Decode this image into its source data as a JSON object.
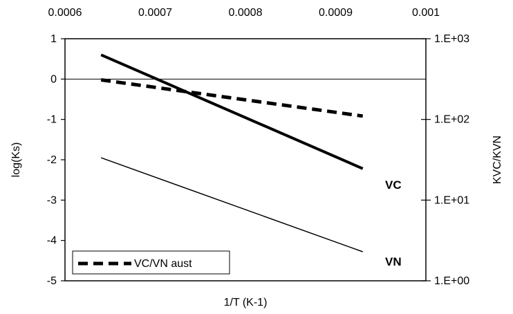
{
  "chart_data": {
    "type": "line",
    "title": "",
    "x_axis": {
      "label": "1/T (K-1)",
      "range": [
        0.0006,
        0.001
      ],
      "tick_values": [
        0.0006,
        0.0007,
        0.0008,
        0.0009,
        0.001
      ],
      "tick_labels": [
        "0.0006",
        "0.0007",
        "0.0008",
        "0.0009",
        "0.001"
      ],
      "tick_label_position": "top"
    },
    "y_axis_left": {
      "label": "log(Ks)",
      "range": [
        -5,
        1
      ],
      "tick_values": [
        1,
        0,
        -1,
        -2,
        -3,
        -4,
        -5
      ],
      "tick_labels": [
        "1",
        "0",
        "-1",
        "-2",
        "-3",
        "-4",
        "-5"
      ]
    },
    "y_axis_right": {
      "label": "KVC/KVN",
      "scale": "log",
      "range": [
        1,
        1000
      ],
      "tick_values": [
        1000,
        100,
        10,
        1
      ],
      "tick_labels": [
        "1.E+03",
        "1.E+02",
        "1.E+01",
        "1.E+00"
      ]
    },
    "grid": false,
    "series": [
      {
        "name": "VC",
        "axis": "left",
        "style": "thick-solid",
        "color": "#000000",
        "x": [
          0.00064,
          0.00093
        ],
        "y": [
          0.6,
          -2.22
        ]
      },
      {
        "name": "VN",
        "axis": "left",
        "style": "thin-solid",
        "color": "#000000",
        "x": [
          0.00064,
          0.00093
        ],
        "y": [
          -1.95,
          -4.28
        ]
      },
      {
        "name": "VC/VN aust",
        "axis": "right",
        "style": "dashed",
        "color": "#000000",
        "x": [
          0.00064,
          0.00093
        ],
        "y": [
          309,
          110
        ]
      }
    ],
    "legend": {
      "position": "bottom-left",
      "entries": [
        {
          "label": "VC/VN aust",
          "style": "dashed"
        }
      ]
    }
  }
}
